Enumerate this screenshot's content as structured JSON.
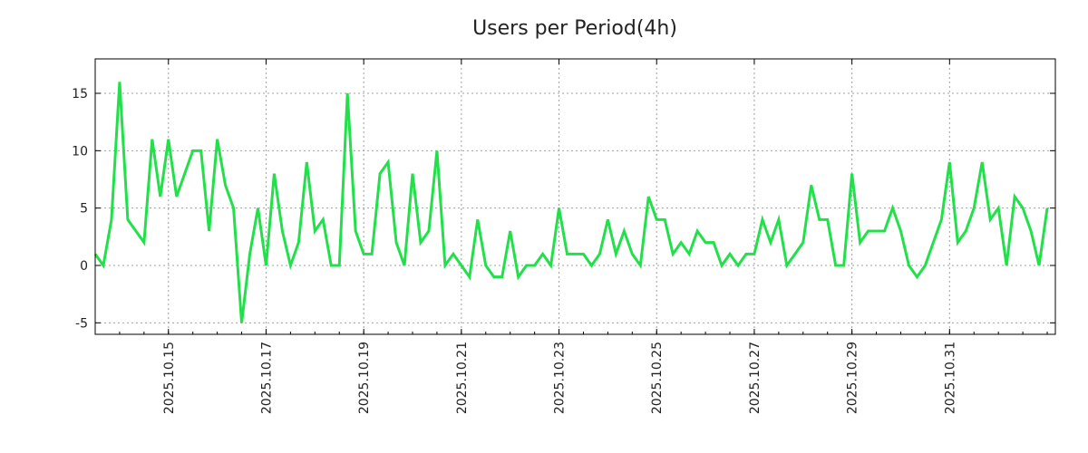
{
  "chart_data": {
    "type": "line",
    "title": "Users per Period(4h)",
    "xlabel": "",
    "ylabel": "",
    "x_start": "2025-10-13 12:00",
    "x_step_hours": 4,
    "xlim": [
      "2025-10-13 12:00",
      "2025-11-02 04:00"
    ],
    "ylim": [
      -6,
      18
    ],
    "grid": true,
    "legend": "none",
    "y_ticks": [
      -5,
      0,
      5,
      10,
      15
    ],
    "x_ticks": [
      "2025.10.15",
      "2025.10.17",
      "2025.10.19",
      "2025.10.21",
      "2025.10.23",
      "2025.10.25",
      "2025.10.27",
      "2025.10.29",
      "2025.10.31"
    ],
    "series": [
      {
        "color": "#22e04a",
        "values": [
          1,
          0,
          4,
          16,
          4,
          3,
          2,
          11,
          6,
          11,
          6,
          8,
          10,
          10,
          3,
          11,
          7,
          5,
          -5,
          1,
          5,
          0,
          8,
          3,
          0,
          2,
          9,
          3,
          4,
          0,
          0,
          15,
          3,
          1,
          1,
          8,
          9,
          2,
          0,
          8,
          2,
          3,
          10,
          0,
          1,
          0,
          -1,
          4,
          0,
          -1,
          -1,
          3,
          -1,
          0,
          0,
          1,
          0,
          5,
          1,
          1,
          1,
          0,
          1,
          4,
          1,
          3,
          1,
          0,
          6,
          4,
          4,
          1,
          2,
          1,
          3,
          2,
          2,
          0,
          1,
          0,
          1,
          1,
          4,
          2,
          4,
          0,
          1,
          2,
          7,
          4,
          4,
          0,
          0,
          8,
          2,
          3,
          3,
          3,
          5,
          3,
          0,
          -1,
          0,
          2,
          4,
          9,
          2,
          3,
          5,
          9,
          4,
          5,
          0,
          6,
          5,
          3,
          0,
          5
        ]
      }
    ]
  }
}
